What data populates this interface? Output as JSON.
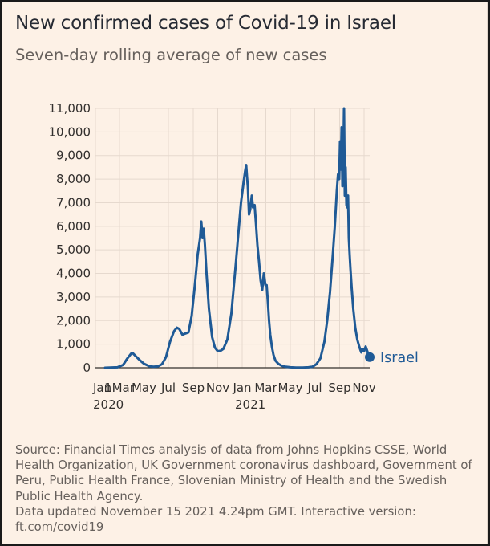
{
  "header": {
    "title": "New confirmed cases of Covid-19 in Israel",
    "subtitle": "Seven-day rolling average of new cases"
  },
  "footer": {
    "source": "Source: Financial Times analysis of data from Johns Hopkins CSSE, World Health Organization, UK Government coronavirus dashboard, Government of Peru, Public Health France, Slovenian Ministry of Health and the Swedish Public Health Agency.",
    "updated": "Data updated November 15 2021 4.24pm GMT. Interactive version: ft.com/covid19"
  },
  "colors": {
    "line": "#1f5a96",
    "gridline": "#e6d9ce",
    "background": "#fdf1e6"
  },
  "chart_data": {
    "type": "line",
    "title": "New confirmed cases of Covid-19 in Israel",
    "subtitle": "Seven-day rolling average of new cases",
    "xlabel": "",
    "ylabel": "",
    "ylim": [
      0,
      11000
    ],
    "xlim": [
      "2020-01-01",
      "2021-11-15"
    ],
    "yticks": [
      0,
      1000,
      2000,
      3000,
      4000,
      5000,
      6000,
      7000,
      8000,
      9000,
      10000,
      11000
    ],
    "ytick_labels": [
      "0",
      "1,000",
      "2,000",
      "3,000",
      "4,000",
      "5,000",
      "6,000",
      "7,000",
      "8,000",
      "9,000",
      "10,000",
      "11,000"
    ],
    "xticks": [
      "2020-01-01",
      "2020-03-01",
      "2020-05-01",
      "2020-07-01",
      "2020-09-01",
      "2020-11-01",
      "2021-01-01",
      "2021-03-01",
      "2021-05-01",
      "2021-07-01",
      "2021-09-01",
      "2021-11-01"
    ],
    "xtick_labels": [
      "Jan",
      "1Mar",
      "May",
      "Jul",
      "Sep",
      "Nov",
      "Jan",
      "Mar",
      "May",
      "Jul",
      "Sep",
      "Nov"
    ],
    "xtick_year_labels": [
      "2020",
      "",
      "",
      "",
      "",
      "",
      "2021",
      "",
      "",
      "",
      "",
      ""
    ],
    "grid": true,
    "series": [
      {
        "name": "Israel",
        "color": "#1f5a96",
        "x": [
          "2020-01-25",
          "2020-02-25",
          "2020-03-10",
          "2020-03-20",
          "2020-03-30",
          "2020-04-03",
          "2020-04-10",
          "2020-04-20",
          "2020-05-01",
          "2020-05-15",
          "2020-05-25",
          "2020-06-05",
          "2020-06-15",
          "2020-06-25",
          "2020-07-05",
          "2020-07-15",
          "2020-07-22",
          "2020-07-28",
          "2020-08-05",
          "2020-08-12",
          "2020-08-20",
          "2020-08-28",
          "2020-09-05",
          "2020-09-12",
          "2020-09-18",
          "2020-09-21",
          "2020-09-24",
          "2020-09-27",
          "2020-09-30",
          "2020-10-04",
          "2020-10-10",
          "2020-10-18",
          "2020-10-25",
          "2020-11-01",
          "2020-11-08",
          "2020-11-15",
          "2020-11-25",
          "2020-12-05",
          "2020-12-15",
          "2020-12-22",
          "2020-12-29",
          "2021-01-04",
          "2021-01-08",
          "2021-01-11",
          "2021-01-13",
          "2021-01-15",
          "2021-01-18",
          "2021-01-21",
          "2021-01-25",
          "2021-01-28",
          "2021-02-01",
          "2021-02-04",
          "2021-02-08",
          "2021-02-12",
          "2021-02-16",
          "2021-02-20",
          "2021-02-24",
          "2021-02-28",
          "2021-03-03",
          "2021-03-06",
          "2021-03-09",
          "2021-03-12",
          "2021-03-16",
          "2021-03-20",
          "2021-03-25",
          "2021-04-01",
          "2021-04-10",
          "2021-04-20",
          "2021-05-01",
          "2021-05-15",
          "2021-06-01",
          "2021-06-15",
          "2021-06-25",
          "2021-07-05",
          "2021-07-15",
          "2021-07-25",
          "2021-08-01",
          "2021-08-08",
          "2021-08-15",
          "2021-08-20",
          "2021-08-25",
          "2021-08-28",
          "2021-08-31",
          "2021-09-02",
          "2021-09-04",
          "2021-09-06",
          "2021-09-08",
          "2021-09-10",
          "2021-09-12",
          "2021-09-14",
          "2021-09-16",
          "2021-09-18",
          "2021-09-20",
          "2021-09-22",
          "2021-09-24",
          "2021-09-26",
          "2021-09-28",
          "2021-10-01",
          "2021-10-05",
          "2021-10-10",
          "2021-10-15",
          "2021-10-20",
          "2021-10-25",
          "2021-10-28",
          "2021-11-01",
          "2021-11-05",
          "2021-11-10",
          "2021-11-15"
        ],
        "values": [
          0,
          20,
          120,
          380,
          600,
          620,
          500,
          330,
          170,
          60,
          40,
          60,
          150,
          450,
          1100,
          1550,
          1700,
          1650,
          1400,
          1450,
          1500,
          2200,
          3500,
          4800,
          5500,
          6200,
          5500,
          5900,
          5200,
          4000,
          2500,
          1300,
          850,
          700,
          720,
          800,
          1200,
          2300,
          4200,
          5600,
          7000,
          7800,
          8300,
          8600,
          8100,
          7700,
          6500,
          6700,
          7300,
          6800,
          6900,
          6200,
          5200,
          4500,
          3700,
          3300,
          4000,
          3500,
          3500,
          2800,
          2000,
          1400,
          900,
          550,
          300,
          170,
          80,
          40,
          20,
          10,
          10,
          20,
          40,
          150,
          400,
          1100,
          2000,
          3200,
          4800,
          6000,
          7500,
          8200,
          8000,
          9600,
          8400,
          10200,
          7700,
          8200,
          11000,
          7300,
          8500,
          6900,
          6800,
          7300,
          5500,
          4800,
          4200,
          3400,
          2500,
          1700,
          1200,
          900,
          650,
          800,
          700,
          900,
          650,
          450
        ]
      }
    ]
  }
}
